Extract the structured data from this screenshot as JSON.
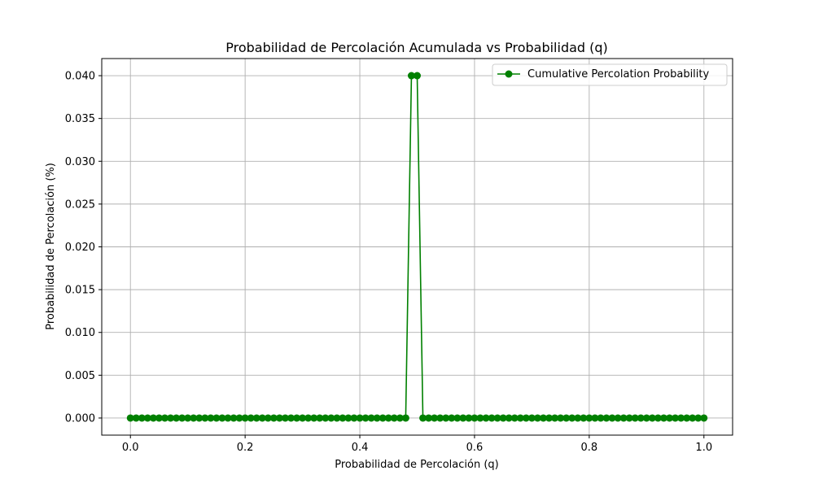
{
  "chart_data": {
    "type": "line",
    "title": "Probabilidad de Percolación Acumulada vs Probabilidad (q)",
    "xlabel": "Probabilidad de Percolación (q)",
    "ylabel": "Probabilidad de Percolación (%)",
    "xlim": [
      -0.05,
      1.05
    ],
    "ylim": [
      -0.002,
      0.042
    ],
    "xticks": [
      0.0,
      0.2,
      0.4,
      0.6,
      0.8,
      1.0
    ],
    "xtick_labels": [
      "0.0",
      "0.2",
      "0.4",
      "0.6",
      "0.8",
      "1.0"
    ],
    "yticks": [
      0.0,
      0.005,
      0.01,
      0.015,
      0.02,
      0.025,
      0.03,
      0.035,
      0.04
    ],
    "ytick_labels": [
      "0.000",
      "0.005",
      "0.010",
      "0.015",
      "0.020",
      "0.025",
      "0.030",
      "0.035",
      "0.040"
    ],
    "grid": true,
    "legend_position": "top-right",
    "series": [
      {
        "name": "Cumulative Percolation Probability",
        "color": "#008000",
        "marker": "circle",
        "x": [
          0.0,
          0.01,
          0.02,
          0.03,
          0.04,
          0.05,
          0.06,
          0.07,
          0.08,
          0.09,
          0.1,
          0.11,
          0.12,
          0.13,
          0.14,
          0.15,
          0.16,
          0.17,
          0.18,
          0.19,
          0.2,
          0.21,
          0.22,
          0.23,
          0.24,
          0.25,
          0.26,
          0.27,
          0.28,
          0.29,
          0.3,
          0.31,
          0.32,
          0.33,
          0.34,
          0.35,
          0.36,
          0.37,
          0.38,
          0.39,
          0.4,
          0.41,
          0.42,
          0.43,
          0.44,
          0.45,
          0.46,
          0.47,
          0.48,
          0.49,
          0.5,
          0.51,
          0.52,
          0.53,
          0.54,
          0.55,
          0.56,
          0.57,
          0.58,
          0.59,
          0.6,
          0.61,
          0.62,
          0.63,
          0.64,
          0.65,
          0.66,
          0.67,
          0.68,
          0.69,
          0.7,
          0.71,
          0.72,
          0.73,
          0.74,
          0.75,
          0.76,
          0.77,
          0.78,
          0.79,
          0.8,
          0.81,
          0.82,
          0.83,
          0.84,
          0.85,
          0.86,
          0.87,
          0.88,
          0.89,
          0.9,
          0.91,
          0.92,
          0.93,
          0.94,
          0.95,
          0.96,
          0.97,
          0.98,
          0.99,
          1.0
        ],
        "y": [
          0,
          0,
          0,
          0,
          0,
          0,
          0,
          0,
          0,
          0,
          0,
          0,
          0,
          0,
          0,
          0,
          0,
          0,
          0,
          0,
          0,
          0,
          0,
          0,
          0,
          0,
          0,
          0,
          0,
          0,
          0,
          0,
          0,
          0,
          0,
          0,
          0,
          0,
          0,
          0,
          0,
          0,
          0,
          0,
          0,
          0,
          0,
          0,
          0,
          0.04,
          0.04,
          0,
          0,
          0,
          0,
          0,
          0,
          0,
          0,
          0,
          0,
          0,
          0,
          0,
          0,
          0,
          0,
          0,
          0,
          0,
          0,
          0,
          0,
          0,
          0,
          0,
          0,
          0,
          0,
          0,
          0,
          0,
          0,
          0,
          0,
          0,
          0,
          0,
          0,
          0,
          0,
          0,
          0,
          0,
          0,
          0,
          0,
          0,
          0,
          0,
          0
        ]
      }
    ]
  }
}
